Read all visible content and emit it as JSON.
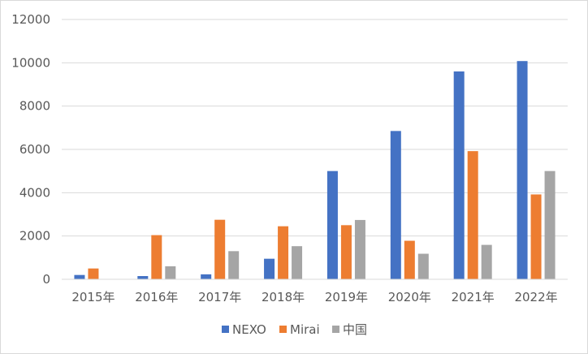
{
  "chart_data": {
    "type": "bar",
    "title": "",
    "xlabel": "",
    "ylabel": "",
    "categories": [
      "2015年",
      "2016年",
      "2017年",
      "2018年",
      "2019年",
      "2020年",
      "2021年",
      "2022年"
    ],
    "ylim": [
      0,
      12000
    ],
    "yticks": [
      0,
      2000,
      4000,
      6000,
      8000,
      10000,
      12000
    ],
    "grid": true,
    "legend_position": "bottom",
    "series": [
      {
        "name": "NEXO",
        "color": "#4472C4",
        "values": [
          200,
          150,
          230,
          950,
          5000,
          6850,
          9600,
          10080
        ]
      },
      {
        "name": "Mirai",
        "color": "#ED7D31",
        "values": [
          500,
          2040,
          2750,
          2450,
          2500,
          1780,
          5920,
          3920
        ]
      },
      {
        "name": "中国",
        "color": "#A5A5A5",
        "values": [
          0,
          600,
          1300,
          1530,
          2740,
          1180,
          1590,
          5000
        ]
      }
    ]
  }
}
